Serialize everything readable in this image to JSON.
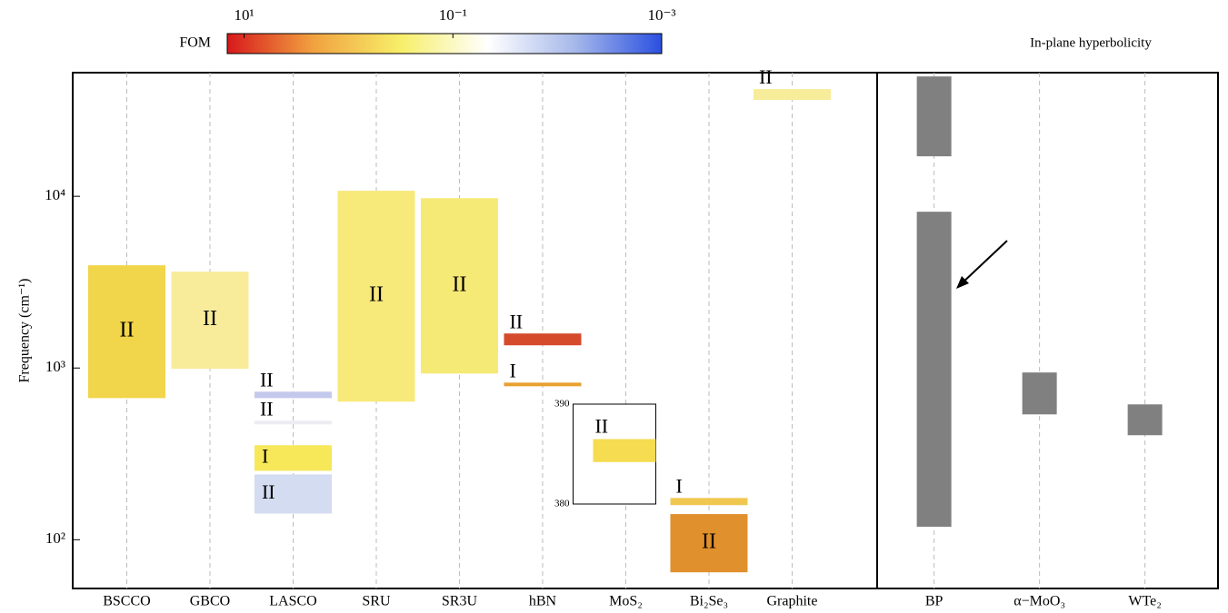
{
  "chart_data": [
    {
      "type": "range-bar",
      "ylabel": "Frequency (cm⁻¹)",
      "log_y": true,
      "grid": true,
      "ylim": [
        52,
        52500
      ],
      "yticks": [
        {
          "value": 100,
          "label": "10²"
        },
        {
          "value": 1000,
          "label": "10³"
        },
        {
          "value": 10000,
          "label": "10⁴"
        }
      ],
      "categories": [
        "BSCCO",
        "GBCO",
        "LASCO",
        "SRU",
        "SR3U",
        "hBN",
        "MoS₂",
        "Bi₂Se₃",
        "Graphite"
      ],
      "bands": [
        {
          "category": 0,
          "low": 668,
          "high": 3965,
          "label": "II",
          "color": "#f1d54a"
        },
        {
          "category": 1,
          "low": 989,
          "high": 3640,
          "label": "II",
          "color": "#f8ec9a"
        },
        {
          "category": 2,
          "low": 668,
          "high": 728,
          "label": "II",
          "color": "#c4c8ec"
        },
        {
          "category": 2,
          "low": 470,
          "high": 493,
          "label": "II",
          "color": "#ececf2"
        },
        {
          "category": 2,
          "low": 252,
          "high": 355,
          "label": "I",
          "color": "#f7e85a"
        },
        {
          "category": 2,
          "low": 142,
          "high": 240,
          "label": "II",
          "color": "#d4dcf2"
        },
        {
          "category": 3,
          "low": 637,
          "high": 10770,
          "label": "II",
          "color": "#f7e97a"
        },
        {
          "category": 4,
          "low": 929,
          "high": 9750,
          "label": "II",
          "color": "#f6ea76"
        },
        {
          "category": 5,
          "low": 1356,
          "high": 1589,
          "label": "II",
          "color": "#d64a2c"
        },
        {
          "category": 5,
          "low": 783,
          "high": 822,
          "label": "I",
          "color": "#e8a030"
        },
        {
          "category": 7,
          "low": 159,
          "high": 175,
          "label": "I",
          "color": "#f0c850"
        },
        {
          "category": 7,
          "low": 64.6,
          "high": 141,
          "label": "II",
          "color": "#e0902c"
        },
        {
          "category": 8,
          "low": 36400,
          "high": 42100,
          "label": "II",
          "color": "#f6ec9a"
        }
      ],
      "inset": {
        "category": 6,
        "ylim": [
          380,
          390
        ],
        "yticks": [
          380,
          390
        ],
        "bands": [
          {
            "low": 384.2,
            "high": 386.5,
            "label": "II",
            "color": "#f5dc50"
          }
        ]
      },
      "colorbar": {
        "label": "FOM",
        "lim": [
          14.5,
          0.001
        ],
        "ticks": [
          {
            "value": 10,
            "label": "10¹"
          },
          {
            "value": 0.1,
            "label": "10⁻¹"
          },
          {
            "value": 0.001,
            "label": "10⁻³"
          }
        ],
        "colors": [
          "#d7191c",
          "#f1a340",
          "#f7ef6a",
          "#ffffff",
          "#a6b8ea",
          "#2b50e0"
        ]
      }
    },
    {
      "type": "range-bar",
      "title": "In-plane hyperbolicity",
      "log_y": true,
      "grid": true,
      "ylim": [
        52,
        52500
      ],
      "categories": [
        "BP",
        "α−MoO₃",
        "WTe₂"
      ],
      "bands": [
        {
          "category": 0,
          "low": 17100,
          "high": 49900,
          "color": "#808080"
        },
        {
          "category": 0,
          "low": 119,
          "high": 8130,
          "color": "#808080"
        },
        {
          "category": 1,
          "low": 537,
          "high": 942,
          "color": "#808080"
        },
        {
          "category": 2,
          "low": 406,
          "high": 614,
          "color": "#808080"
        }
      ]
    }
  ]
}
